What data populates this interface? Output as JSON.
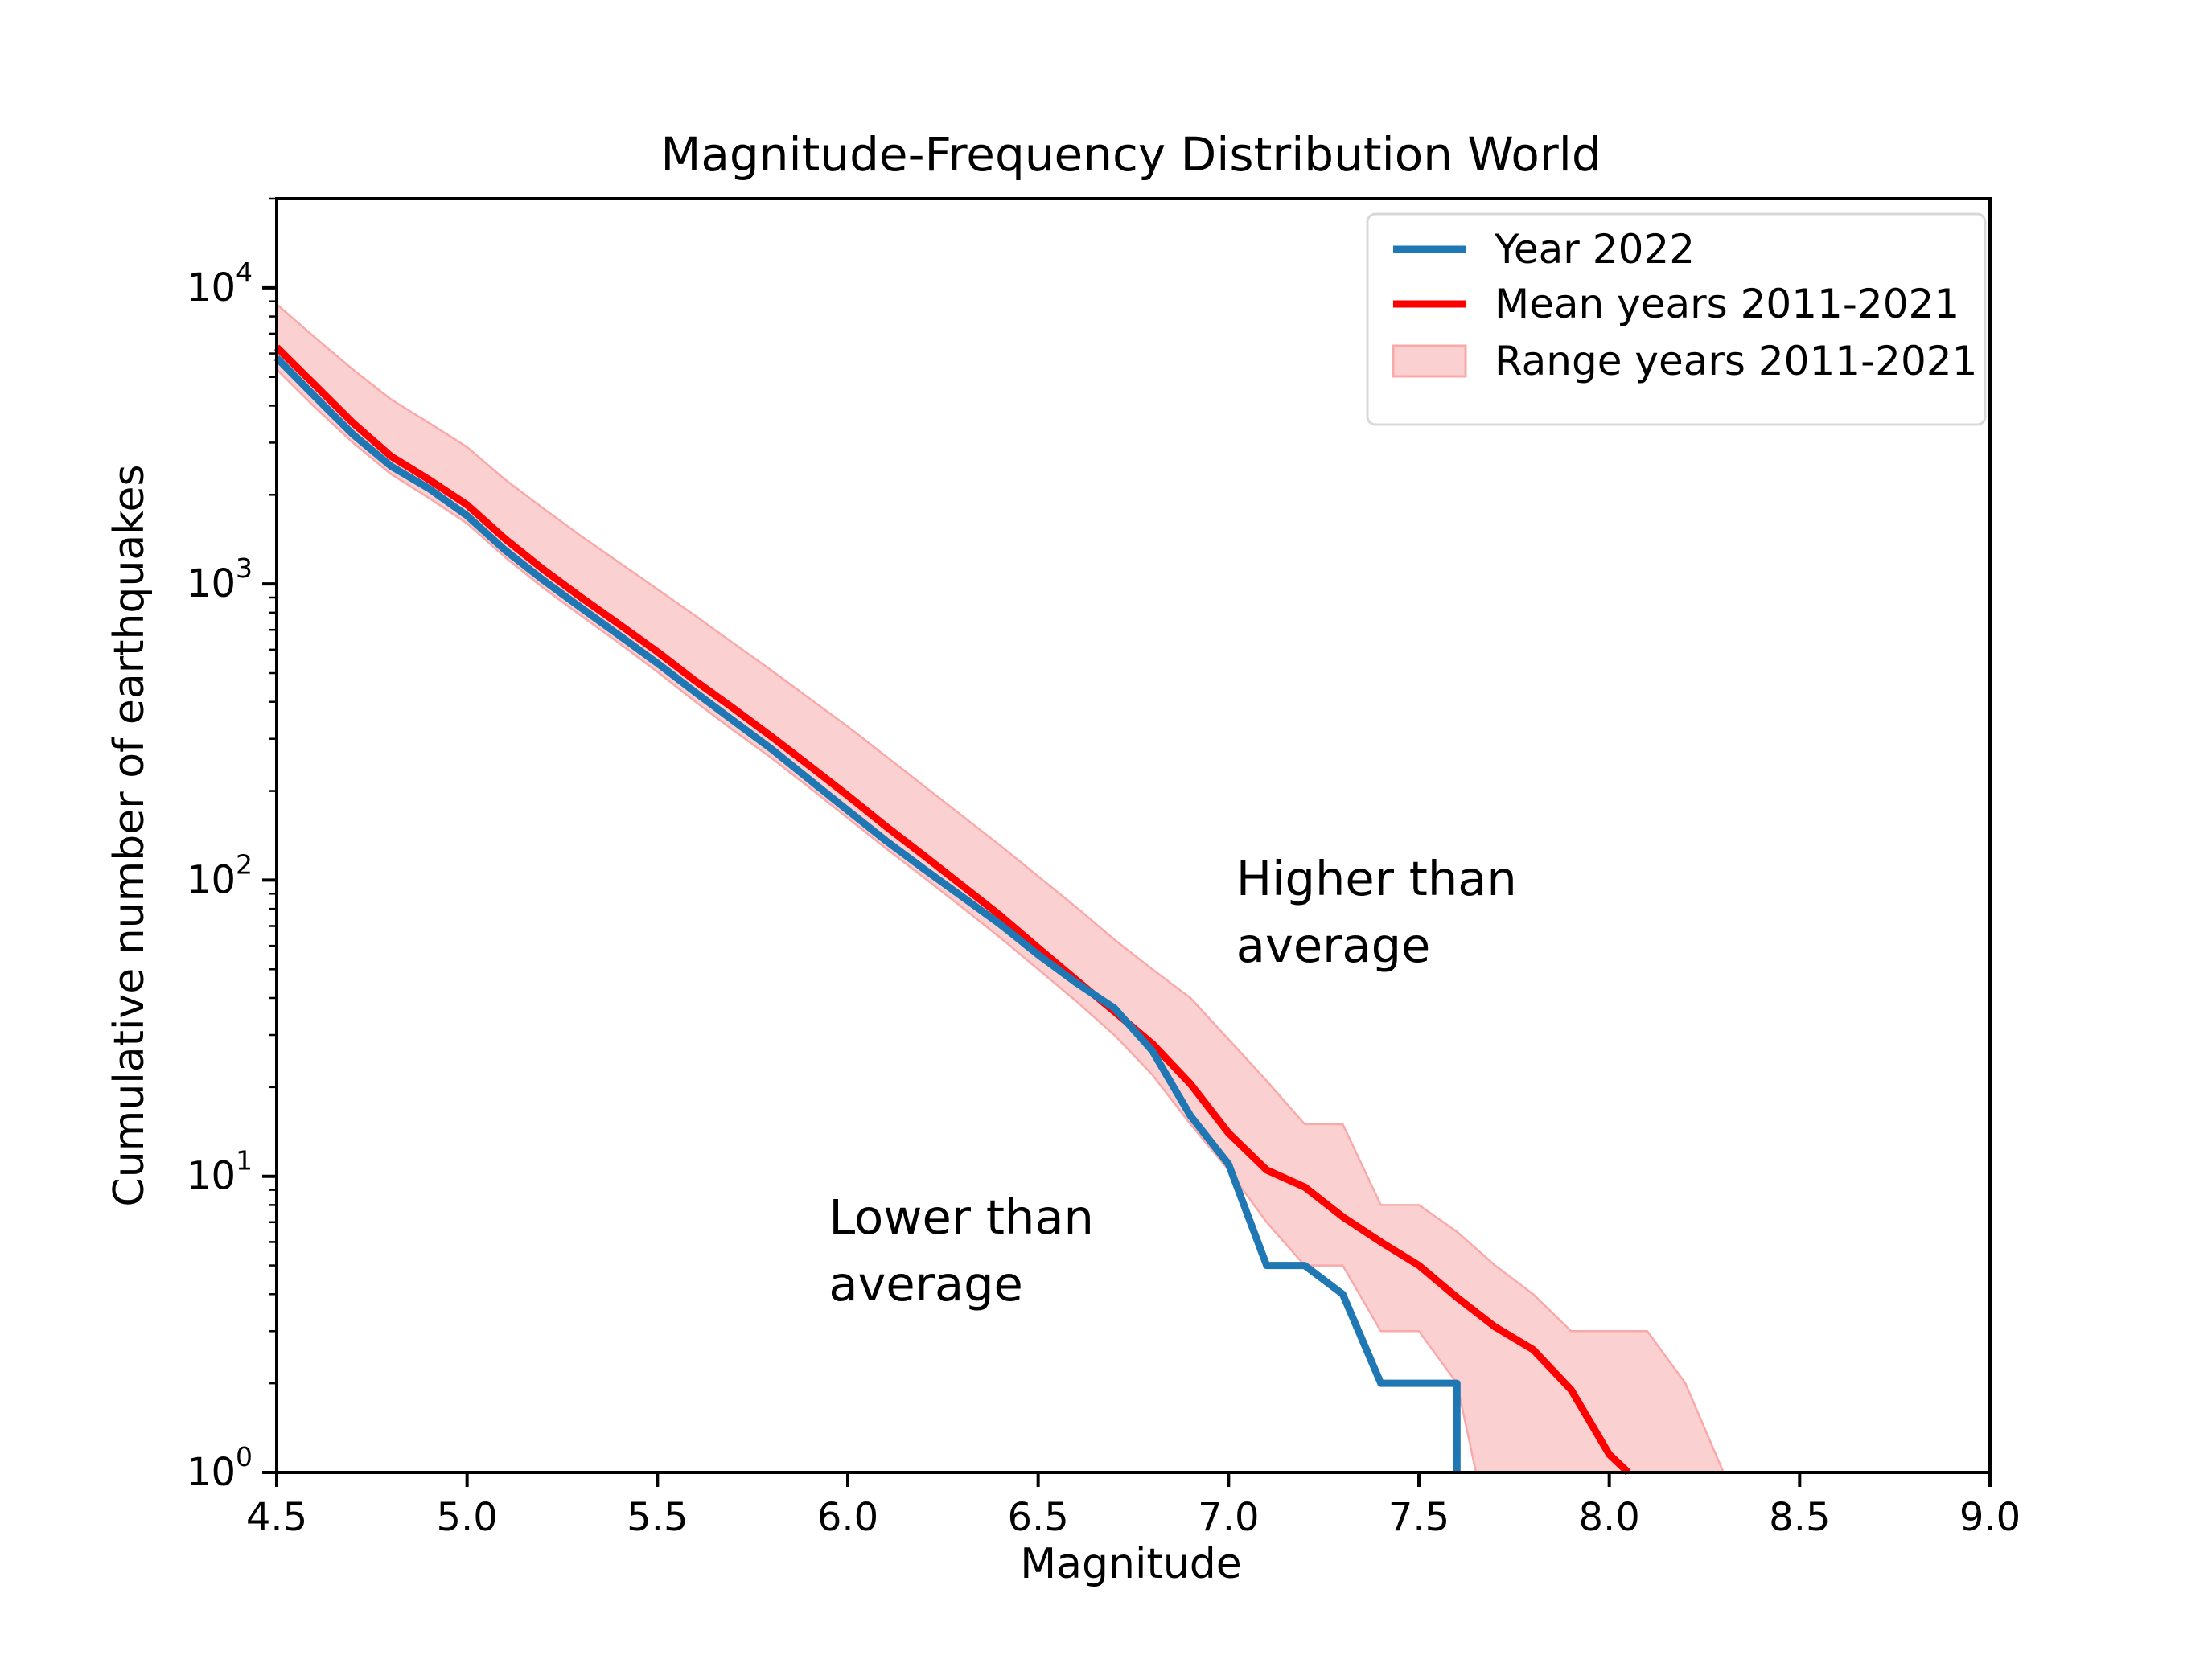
{
  "chart_data": {
    "type": "line",
    "title": "Magnitude-Frequency Distribution World",
    "xlabel": "Magnitude",
    "ylabel": "Cumulative number of earthquakes",
    "xlim": [
      4.5,
      9.0
    ],
    "ylim": [
      1,
      20000
    ],
    "yscale": "log",
    "grid": false,
    "x_tick_labels": [
      "4.5",
      "5.0",
      "5.5",
      "6.0",
      "6.5",
      "7.0",
      "7.5",
      "8.0",
      "8.5",
      "9.0"
    ],
    "x_tick_values": [
      4.5,
      5.0,
      5.5,
      6.0,
      6.5,
      7.0,
      7.5,
      8.0,
      8.5,
      9.0
    ],
    "y_tick_exponents": [
      0,
      1,
      2,
      3,
      4
    ],
    "colors": {
      "year2022": "#1f77b4",
      "mean": "#ff0000",
      "band_fill": "#fbd0d0",
      "band_edge": "#f9a9a9",
      "annotation": "#ff0000",
      "axes": "#000000",
      "legend_border": "#d8d8d8"
    },
    "legend": {
      "position": "upper right",
      "entries": [
        {
          "label": "Year 2022",
          "kind": "line",
          "color_key": "year2022"
        },
        {
          "label": "Mean years 2011-2021",
          "kind": "line",
          "color_key": "mean"
        },
        {
          "label": "Range years 2011-2021",
          "kind": "patch",
          "color_key": "band_fill"
        }
      ]
    },
    "annotations": [
      {
        "name": "higher-than-average",
        "lines": [
          "Higher than",
          "average"
        ],
        "m": 7.02,
        "v": 89
      },
      {
        "name": "lower-than-average",
        "lines": [
          "Lower than",
          "average"
        ],
        "m": 5.95,
        "v": 6.4
      }
    ],
    "series": [
      {
        "name": "Year 2022",
        "color_key": "year2022",
        "points": [
          [
            4.5,
            5800
          ],
          [
            4.6,
            4300
          ],
          [
            4.7,
            3200
          ],
          [
            4.8,
            2500
          ],
          [
            4.9,
            2100
          ],
          [
            5.0,
            1700
          ],
          [
            5.1,
            1300
          ],
          [
            5.2,
            1030
          ],
          [
            5.3,
            830
          ],
          [
            5.4,
            670
          ],
          [
            5.5,
            540
          ],
          [
            5.6,
            430
          ],
          [
            5.7,
            345
          ],
          [
            5.8,
            277
          ],
          [
            5.9,
            218
          ],
          [
            6.0,
            172
          ],
          [
            6.1,
            136
          ],
          [
            6.2,
            109
          ],
          [
            6.3,
            88
          ],
          [
            6.4,
            71
          ],
          [
            6.5,
            56
          ],
          [
            6.6,
            45
          ],
          [
            6.7,
            37
          ],
          [
            6.8,
            26.5
          ],
          [
            6.9,
            16
          ],
          [
            7.0,
            11
          ],
          [
            7.1,
            5
          ],
          [
            7.2,
            5
          ],
          [
            7.3,
            4
          ],
          [
            7.4,
            2
          ],
          [
            7.5,
            2
          ],
          [
            7.6,
            2
          ],
          [
            7.6,
            1
          ]
        ]
      },
      {
        "name": "Mean years 2011-2021",
        "color_key": "mean",
        "points": [
          [
            4.5,
            6300
          ],
          [
            4.6,
            4700
          ],
          [
            4.7,
            3500
          ],
          [
            4.8,
            2700
          ],
          [
            4.9,
            2250
          ],
          [
            5.0,
            1850
          ],
          [
            5.1,
            1420
          ],
          [
            5.2,
            1120
          ],
          [
            5.3,
            900
          ],
          [
            5.4,
            730
          ],
          [
            5.5,
            590
          ],
          [
            5.6,
            470
          ],
          [
            5.7,
            380
          ],
          [
            5.8,
            305
          ],
          [
            5.9,
            243
          ],
          [
            6.0,
            193
          ],
          [
            6.1,
            152
          ],
          [
            6.2,
            121
          ],
          [
            6.3,
            96
          ],
          [
            6.4,
            76
          ],
          [
            6.5,
            59
          ],
          [
            6.6,
            46
          ],
          [
            6.7,
            36
          ],
          [
            6.8,
            28
          ],
          [
            6.9,
            20.5
          ],
          [
            7.0,
            14
          ],
          [
            7.1,
            10.5
          ],
          [
            7.2,
            9.2
          ],
          [
            7.3,
            7.3
          ],
          [
            7.4,
            6.0
          ],
          [
            7.5,
            5.0
          ],
          [
            7.6,
            3.9
          ],
          [
            7.7,
            3.1
          ],
          [
            7.8,
            2.6
          ],
          [
            7.9,
            1.9
          ],
          [
            8.0,
            1.15
          ],
          [
            8.05,
            1.0
          ]
        ]
      }
    ],
    "band": {
      "name": "Range years 2011-2021",
      "upper": [
        [
          4.5,
          8800
        ],
        [
          4.6,
          6800
        ],
        [
          4.7,
          5300
        ],
        [
          4.8,
          4200
        ],
        [
          4.9,
          3500
        ],
        [
          5.0,
          2900
        ],
        [
          5.1,
          2250
        ],
        [
          5.2,
          1800
        ],
        [
          5.3,
          1450
        ],
        [
          5.4,
          1180
        ],
        [
          5.5,
          960
        ],
        [
          5.6,
          780
        ],
        [
          5.7,
          630
        ],
        [
          5.8,
          510
        ],
        [
          5.9,
          410
        ],
        [
          6.0,
          330
        ],
        [
          6.1,
          262
        ],
        [
          6.2,
          208
        ],
        [
          6.3,
          165
        ],
        [
          6.4,
          131
        ],
        [
          6.5,
          103
        ],
        [
          6.6,
          81
        ],
        [
          6.7,
          63
        ],
        [
          6.8,
          50
        ],
        [
          6.9,
          40
        ],
        [
          7.0,
          29
        ],
        [
          7.1,
          21
        ],
        [
          7.2,
          15
        ],
        [
          7.3,
          15
        ],
        [
          7.4,
          8
        ],
        [
          7.5,
          8
        ],
        [
          7.6,
          6.5
        ],
        [
          7.7,
          5
        ],
        [
          7.8,
          4
        ],
        [
          7.9,
          3
        ],
        [
          8.0,
          3
        ],
        [
          8.1,
          3
        ],
        [
          8.2,
          2
        ],
        [
          8.3,
          1
        ]
      ],
      "lower": [
        [
          4.5,
          5300
        ],
        [
          4.6,
          3950
        ],
        [
          4.7,
          3000
        ],
        [
          4.8,
          2350
        ],
        [
          4.9,
          1950
        ],
        [
          5.0,
          1600
        ],
        [
          5.1,
          1230
        ],
        [
          5.2,
          970
        ],
        [
          5.3,
          780
        ],
        [
          5.4,
          630
        ],
        [
          5.5,
          505
        ],
        [
          5.6,
          400
        ],
        [
          5.7,
          320
        ],
        [
          5.8,
          258
        ],
        [
          5.9,
          205
        ],
        [
          6.0,
          162
        ],
        [
          6.1,
          128
        ],
        [
          6.2,
          102
        ],
        [
          6.3,
          81
        ],
        [
          6.4,
          64
        ],
        [
          6.5,
          50
        ],
        [
          6.6,
          39
        ],
        [
          6.7,
          30
        ],
        [
          6.8,
          22
        ],
        [
          6.9,
          15
        ],
        [
          7.0,
          10.5
        ],
        [
          7.1,
          7
        ],
        [
          7.2,
          5
        ],
        [
          7.3,
          5
        ],
        [
          7.4,
          3
        ],
        [
          7.5,
          3
        ],
        [
          7.6,
          2
        ],
        [
          7.65,
          1
        ],
        [
          8.3,
          1
        ]
      ]
    }
  }
}
